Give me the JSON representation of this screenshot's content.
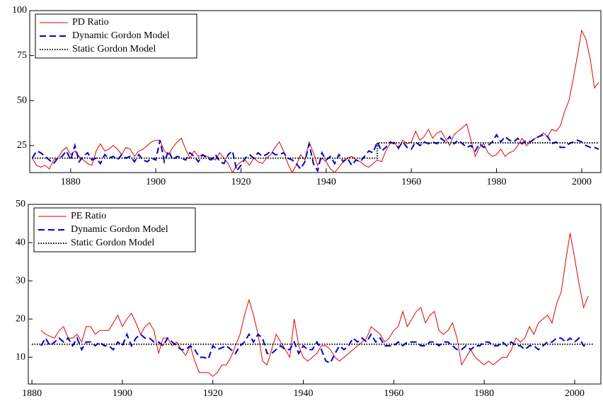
{
  "chart_data": [
    {
      "type": "line",
      "legend": "upper left",
      "grid": false,
      "xlim": [
        1870.4,
        2004.5
      ],
      "ylim": [
        10,
        100
      ],
      "xticks": [
        1880,
        1900,
        1920,
        1940,
        1960,
        1980,
        2000
      ],
      "yticks": [
        25,
        50,
        75,
        100
      ],
      "x": [
        1871,
        1872,
        1873,
        1874,
        1875,
        1876,
        1877,
        1878,
        1879,
        1880,
        1881,
        1882,
        1883,
        1884,
        1885,
        1886,
        1887,
        1888,
        1889,
        1890,
        1891,
        1892,
        1893,
        1894,
        1895,
        1896,
        1897,
        1898,
        1899,
        1900,
        1901,
        1902,
        1903,
        1904,
        1905,
        1906,
        1907,
        1908,
        1909,
        1910,
        1911,
        1912,
        1913,
        1914,
        1915,
        1916,
        1917,
        1918,
        1919,
        1920,
        1921,
        1922,
        1923,
        1924,
        1925,
        1926,
        1927,
        1928,
        1929,
        1930,
        1931,
        1932,
        1933,
        1934,
        1935,
        1936,
        1937,
        1938,
        1939,
        1940,
        1941,
        1942,
        1943,
        1944,
        1945,
        1946,
        1947,
        1948,
        1949,
        1950,
        1951,
        1952,
        1953,
        1954,
        1955,
        1956,
        1957,
        1958,
        1959,
        1960,
        1961,
        1962,
        1963,
        1964,
        1965,
        1966,
        1967,
        1968,
        1969,
        1970,
        1971,
        1972,
        1973,
        1974,
        1975,
        1976,
        1977,
        1978,
        1979,
        1980,
        1981,
        1982,
        1983,
        1984,
        1985,
        1986,
        1987,
        1988,
        1989,
        1990,
        1991,
        1992,
        1993,
        1994,
        1995,
        1996,
        1997,
        1998,
        1999,
        2000,
        2001,
        2002,
        2003,
        2004
      ],
      "series": [
        {
          "name": "PD Ratio",
          "color": "#e00000",
          "style": "solid",
          "values": [
            18,
            14,
            13,
            14,
            12,
            17,
            18,
            22,
            24,
            20,
            22,
            19,
            17,
            15,
            14,
            22,
            26,
            22,
            23,
            25,
            23,
            20,
            24,
            23,
            19,
            22,
            23,
            25,
            27,
            28,
            28,
            22,
            20,
            24,
            27,
            29,
            23,
            18,
            22,
            19,
            20,
            19,
            18,
            17,
            21,
            18,
            15,
            10,
            14,
            16,
            17,
            14,
            18,
            16,
            15,
            18,
            20,
            24,
            27,
            22,
            15,
            10,
            14,
            20,
            17,
            27,
            21,
            14,
            18,
            16,
            12,
            10,
            13,
            16,
            18,
            19,
            17,
            16,
            14,
            13,
            15,
            17,
            16,
            22,
            26,
            27,
            23,
            28,
            26,
            27,
            33,
            28,
            30,
            34,
            29,
            32,
            33,
            29,
            25,
            31,
            33,
            35,
            37,
            28,
            19,
            24,
            26,
            21,
            19,
            20,
            23,
            19,
            21,
            22,
            25,
            29,
            25,
            27,
            29,
            30,
            32,
            30,
            34,
            33,
            36,
            44,
            50,
            62,
            75,
            89,
            84,
            73,
            57,
            60
          ]
        },
        {
          "name": "Dynamic Gordon Model",
          "color": "#0000cc",
          "style": "dashed",
          "values": [
            18,
            22,
            21,
            19,
            17,
            15,
            18,
            19,
            22,
            17,
            25,
            16,
            19,
            21,
            17,
            18,
            15,
            20,
            18,
            19,
            17,
            20,
            18,
            19,
            16,
            20,
            17,
            16,
            18,
            17,
            28,
            16,
            22,
            17,
            19,
            18,
            17,
            21,
            19,
            16,
            20,
            18,
            17,
            20,
            16,
            15,
            20,
            22,
            11,
            14,
            18,
            20,
            18,
            21,
            19,
            20,
            22,
            20,
            20,
            21,
            18,
            17,
            15,
            12,
            16,
            26,
            15,
            11,
            21,
            17,
            19,
            15,
            20,
            16,
            18,
            14,
            17,
            16,
            19,
            22,
            21,
            27,
            22,
            24,
            27,
            26,
            24,
            27,
            24,
            23,
            27,
            25,
            27,
            26,
            27,
            26,
            29,
            27,
            30,
            26,
            28,
            26,
            24,
            25,
            22,
            26,
            24,
            25,
            27,
            31,
            27,
            30,
            28,
            27,
            29,
            26,
            28,
            27,
            29,
            30,
            31,
            30,
            26,
            27,
            24,
            24,
            26,
            27,
            28,
            27,
            25,
            24,
            24,
            23
          ]
        },
        {
          "name": "Static Gordon Model",
          "color": "#000000",
          "style": "dotted",
          "x": [
            1871,
            1952,
            1952,
            2004
          ],
          "values": [
            18,
            18,
            26.5,
            26.5
          ]
        }
      ]
    },
    {
      "type": "line",
      "legend": "upper left",
      "grid": false,
      "xlim": [
        1879.2,
        2005.8
      ],
      "ylim": [
        3,
        50
      ],
      "xticks": [
        1880,
        1900,
        1920,
        1940,
        1960,
        1980,
        2000
      ],
      "yticks": [
        10,
        20,
        30,
        40,
        50
      ],
      "x": [
        1882,
        1883,
        1884,
        1885,
        1886,
        1887,
        1888,
        1889,
        1890,
        1891,
        1892,
        1893,
        1894,
        1895,
        1896,
        1897,
        1898,
        1899,
        1900,
        1901,
        1902,
        1903,
        1904,
        1905,
        1906,
        1907,
        1908,
        1909,
        1910,
        1911,
        1912,
        1913,
        1914,
        1915,
        1916,
        1917,
        1918,
        1919,
        1920,
        1921,
        1922,
        1923,
        1924,
        1925,
        1926,
        1927,
        1928,
        1929,
        1930,
        1931,
        1932,
        1933,
        1934,
        1935,
        1936,
        1937,
        1938,
        1939,
        1940,
        1941,
        1942,
        1943,
        1944,
        1945,
        1946,
        1947,
        1948,
        1949,
        1950,
        1951,
        1952,
        1953,
        1954,
        1955,
        1956,
        1957,
        1958,
        1959,
        1960,
        1961,
        1962,
        1963,
        1964,
        1965,
        1966,
        1967,
        1968,
        1969,
        1970,
        1971,
        1972,
        1973,
        1974,
        1975,
        1976,
        1977,
        1978,
        1979,
        1980,
        1981,
        1982,
        1983,
        1984,
        1985,
        1986,
        1987,
        1988,
        1989,
        1990,
        1991,
        1992,
        1993,
        1994,
        1995,
        1996,
        1997,
        1998,
        1999,
        2000,
        2001,
        2002,
        2003
      ],
      "series": [
        {
          "name": "PE Ratio",
          "color": "#e00000",
          "style": "solid",
          "values": [
            17,
            16,
            15.5,
            15,
            17,
            18,
            15,
            15,
            16,
            14,
            18,
            18,
            16,
            17,
            17,
            17,
            19,
            21,
            18,
            20,
            21.5,
            19,
            16,
            18,
            19,
            17,
            11,
            15,
            15,
            13,
            14,
            12,
            10.5,
            13,
            9,
            6,
            6,
            6,
            5,
            6,
            8,
            8,
            10,
            13,
            16,
            21,
            25,
            21,
            16,
            9,
            8,
            12,
            16,
            14,
            12,
            10,
            20,
            13,
            10,
            9,
            10,
            11,
            13,
            13,
            12,
            10,
            9,
            10,
            11,
            12,
            13,
            14,
            15,
            18,
            17,
            16,
            14,
            15,
            17,
            18,
            22,
            18,
            20,
            22,
            23,
            19,
            21,
            22,
            17,
            16,
            17,
            19,
            15,
            8,
            10,
            12,
            10,
            9,
            8,
            9,
            8,
            9,
            10,
            10,
            12,
            15,
            14,
            15,
            18,
            16,
            19,
            20,
            21,
            19,
            24,
            27,
            35,
            42.5,
            36,
            29,
            23,
            26
          ]
        },
        {
          "name": "Dynamic Gordon Model",
          "color": "#0000cc",
          "style": "dashed",
          "values": [
            13,
            15,
            13,
            14,
            15,
            14,
            15,
            13,
            15,
            12,
            14,
            14,
            13,
            14,
            13,
            13,
            12,
            14,
            13,
            16,
            13,
            15,
            16,
            15,
            15,
            14,
            14,
            13,
            15,
            14,
            13,
            12,
            12,
            13,
            12,
            10,
            10,
            9.5,
            13,
            12,
            12.5,
            13,
            12,
            11,
            13,
            14,
            16,
            14,
            16,
            15,
            11,
            11,
            12,
            13,
            12,
            12,
            14,
            11,
            13,
            12,
            12,
            14,
            12,
            9,
            8.5,
            11,
            13,
            12,
            13,
            15,
            14,
            15,
            14,
            16,
            14,
            15,
            13,
            13,
            13,
            14,
            13,
            14,
            14,
            14,
            13,
            13,
            14,
            14,
            13,
            14,
            14,
            13,
            12,
            12,
            13,
            12,
            13,
            13,
            14,
            14,
            13,
            13,
            14,
            13,
            14,
            13,
            13,
            12,
            13,
            13,
            12,
            13,
            14,
            14,
            15,
            15,
            14,
            15,
            14,
            15,
            13,
            13
          ]
        },
        {
          "name": "Static Gordon Model",
          "color": "#000000",
          "style": "dotted",
          "x": [
            1880,
            2004
          ],
          "values": [
            13.4,
            13.4
          ]
        }
      ]
    }
  ]
}
